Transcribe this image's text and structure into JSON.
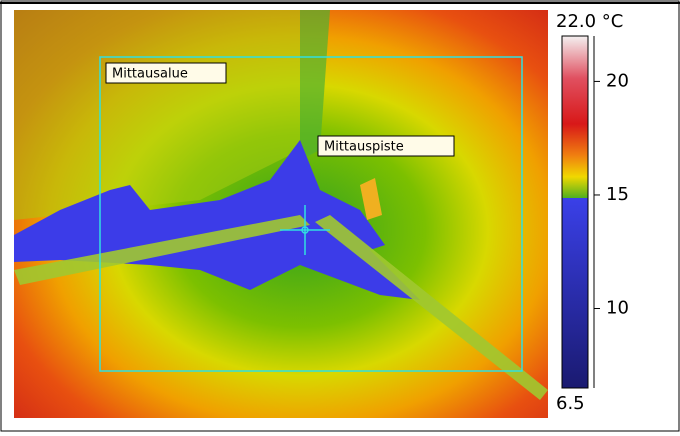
{
  "image": {
    "labels": [
      "Mittausalue",
      "Mittauspiste"
    ]
  },
  "scale": {
    "lim": [
      6.5,
      {
        "value": 22,
        "label": "22.0 °C"
      }
    ],
    "ticks": [
      10,
      15,
      20
    ]
  }
}
